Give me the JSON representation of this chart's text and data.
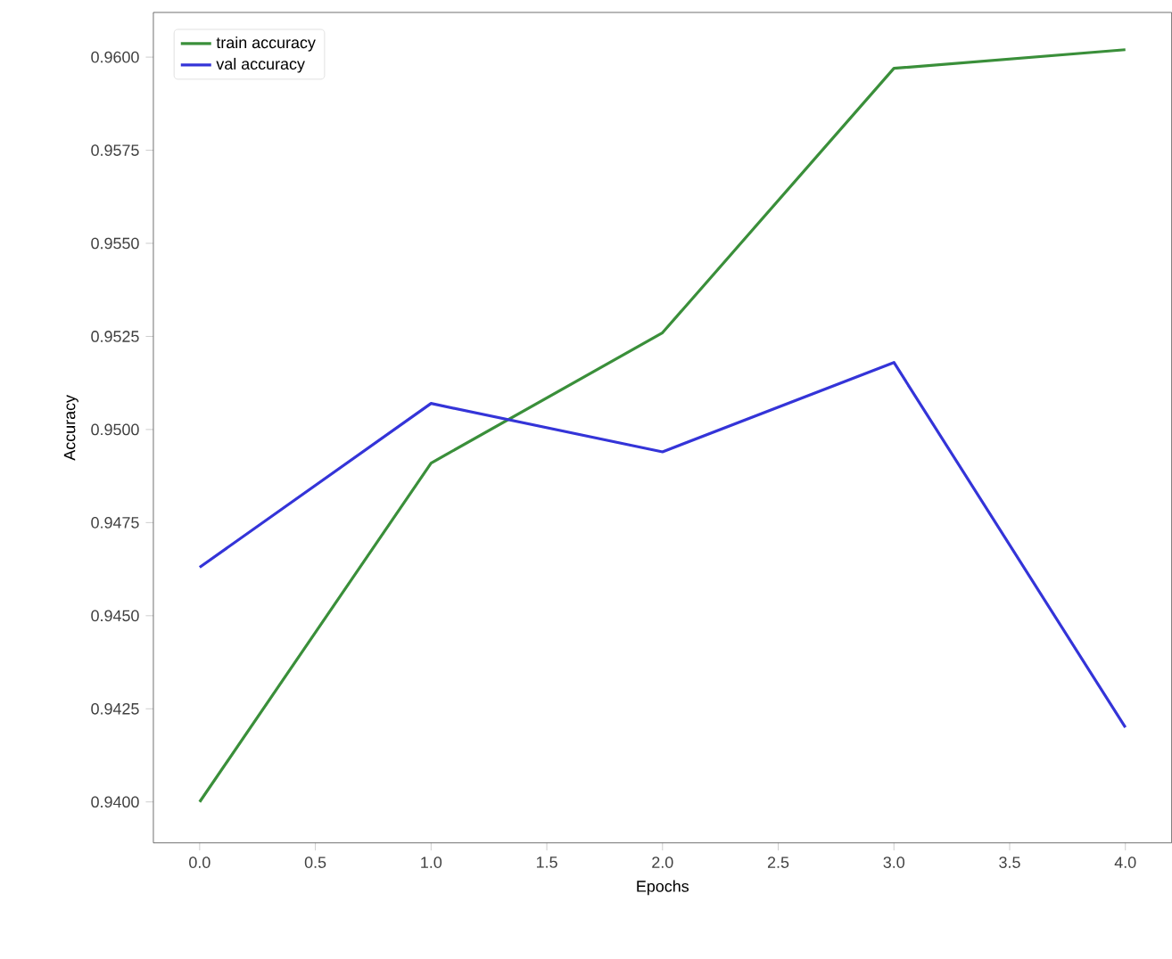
{
  "chart_data": {
    "type": "line",
    "xlabel": "Epochs",
    "ylabel": "Accuracy",
    "x": [
      0,
      1,
      2,
      3,
      4
    ],
    "series": [
      {
        "name": "train accuracy",
        "color": "#3a8f3a",
        "values": [
          0.94,
          0.9491,
          0.9526,
          0.9597,
          0.9602
        ]
      },
      {
        "name": "val accuracy",
        "color": "#3434d8",
        "values": [
          0.9463,
          0.9507,
          0.9494,
          0.9518,
          0.942
        ]
      }
    ],
    "xlim": [
      -0.2,
      4.2
    ],
    "ylim": [
      0.9389,
      0.9612
    ],
    "xticks": [
      {
        "value": 0,
        "label": "0.0"
      },
      {
        "value": 0.5,
        "label": "0.5"
      },
      {
        "value": 1,
        "label": "1.0"
      },
      {
        "value": 1.5,
        "label": "1.5"
      },
      {
        "value": 2,
        "label": "2.0"
      },
      {
        "value": 2.5,
        "label": "2.5"
      },
      {
        "value": 3,
        "label": "3.0"
      },
      {
        "value": 3.5,
        "label": "3.5"
      },
      {
        "value": 4,
        "label": "4.0"
      }
    ],
    "yticks": [
      {
        "value": 0.94,
        "label": "0.9400"
      },
      {
        "value": 0.9425,
        "label": "0.9425"
      },
      {
        "value": 0.945,
        "label": "0.9450"
      },
      {
        "value": 0.9475,
        "label": "0.9475"
      },
      {
        "value": 0.95,
        "label": "0.9500"
      },
      {
        "value": 0.9525,
        "label": "0.9525"
      },
      {
        "value": 0.955,
        "label": "0.9550"
      },
      {
        "value": 0.9575,
        "label": "0.9575"
      },
      {
        "value": 0.96,
        "label": "0.9600"
      }
    ],
    "legend": "top left",
    "grid": false,
    "marker": "none",
    "line_style": "solid"
  }
}
